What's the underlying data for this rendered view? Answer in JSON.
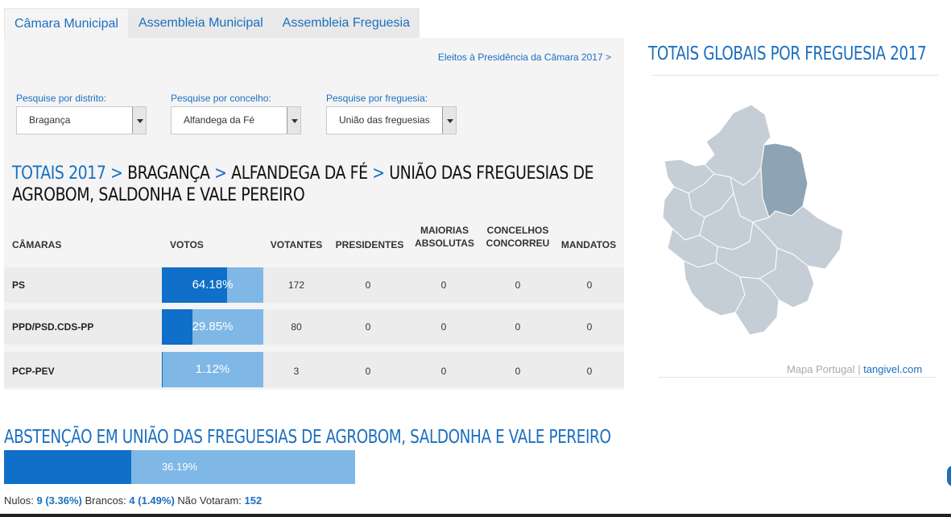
{
  "tabs": [
    {
      "label": "Câmara Municipal",
      "active": true
    },
    {
      "label": "Assembleia Municipal",
      "active": false
    },
    {
      "label": "Assembleia Freguesia",
      "active": false
    }
  ],
  "eleitos_link": "Eleitos à Presidência da Câmara 2017 >",
  "filters": {
    "distrito": {
      "label": "Pesquise por distrito:",
      "value": "Bragança"
    },
    "concelho": {
      "label": "Pesquise por concelho:",
      "value": "Alfandega da Fé"
    },
    "freguesia": {
      "label": "Pesquise por freguesia:",
      "value": "União das freguesias"
    }
  },
  "breadcrumb": {
    "root": "TOTAIS 2017",
    "sep": ">",
    "distrito": "BRAGANÇA",
    "concelho": "ALFANDEGA DA FÉ",
    "freguesia": "UNIÃO DAS FREGUESIAS DE AGROBOM, SALDONHA E VALE PEREIRO"
  },
  "table": {
    "headers": {
      "camaras": "CÂMARAS",
      "votos": "VOTOS",
      "votantes": "VOTANTES",
      "presidentes": "PRESIDENTES",
      "maiorias_1": "MAIORIAS",
      "maiorias_2": "ABSOLUTAS",
      "concelhos_1": "CONCELHOS",
      "concelhos_2": "CONCORREU",
      "mandatos": "MANDATOS"
    },
    "rows": [
      {
        "party": "PS",
        "pct_label": "64.18%",
        "pct": 64.18,
        "votantes": "172",
        "presidentes": "0",
        "maiorias": "0",
        "concelhos": "0",
        "mandatos": "0"
      },
      {
        "party": "PPD/PSD.CDS-PP",
        "pct_label": "29.85%",
        "pct": 29.85,
        "votantes": "80",
        "presidentes": "0",
        "maiorias": "0",
        "concelhos": "0",
        "mandatos": "0"
      },
      {
        "party": "PCP-PEV",
        "pct_label": "1.12%",
        "pct": 1.12,
        "votantes": "3",
        "presidentes": "0",
        "maiorias": "0",
        "concelhos": "0",
        "mandatos": "0"
      }
    ]
  },
  "right": {
    "title": "TOTAIS GLOBAIS POR FREGUESIA 2017",
    "map_credit": "Mapa Portugal",
    "map_credit_sep": "|",
    "map_credit_link": "tangivel.com"
  },
  "abstention": {
    "title": "ABSTENÇÃO EM UNIÃO DAS FREGUESIAS DE AGROBOM, SALDONHA E VALE PEREIRO",
    "pct_label": "36.19%",
    "pct": 36.19
  },
  "stats": {
    "nulos_label": "Nulos:",
    "nulos_value": "9 (3.36%)",
    "brancos_label": "Brancos:",
    "brancos_value": "4 (1.49%)",
    "nao_votaram_label": "Não Votaram:",
    "nao_votaram_value": "152"
  },
  "colors": {
    "accent": "#1a6fc0",
    "bar_fill": "#0f6fc9",
    "bar_bg": "#7fb8e6",
    "map_region": "#c5ced6",
    "map_selected": "#8ea4b4"
  }
}
